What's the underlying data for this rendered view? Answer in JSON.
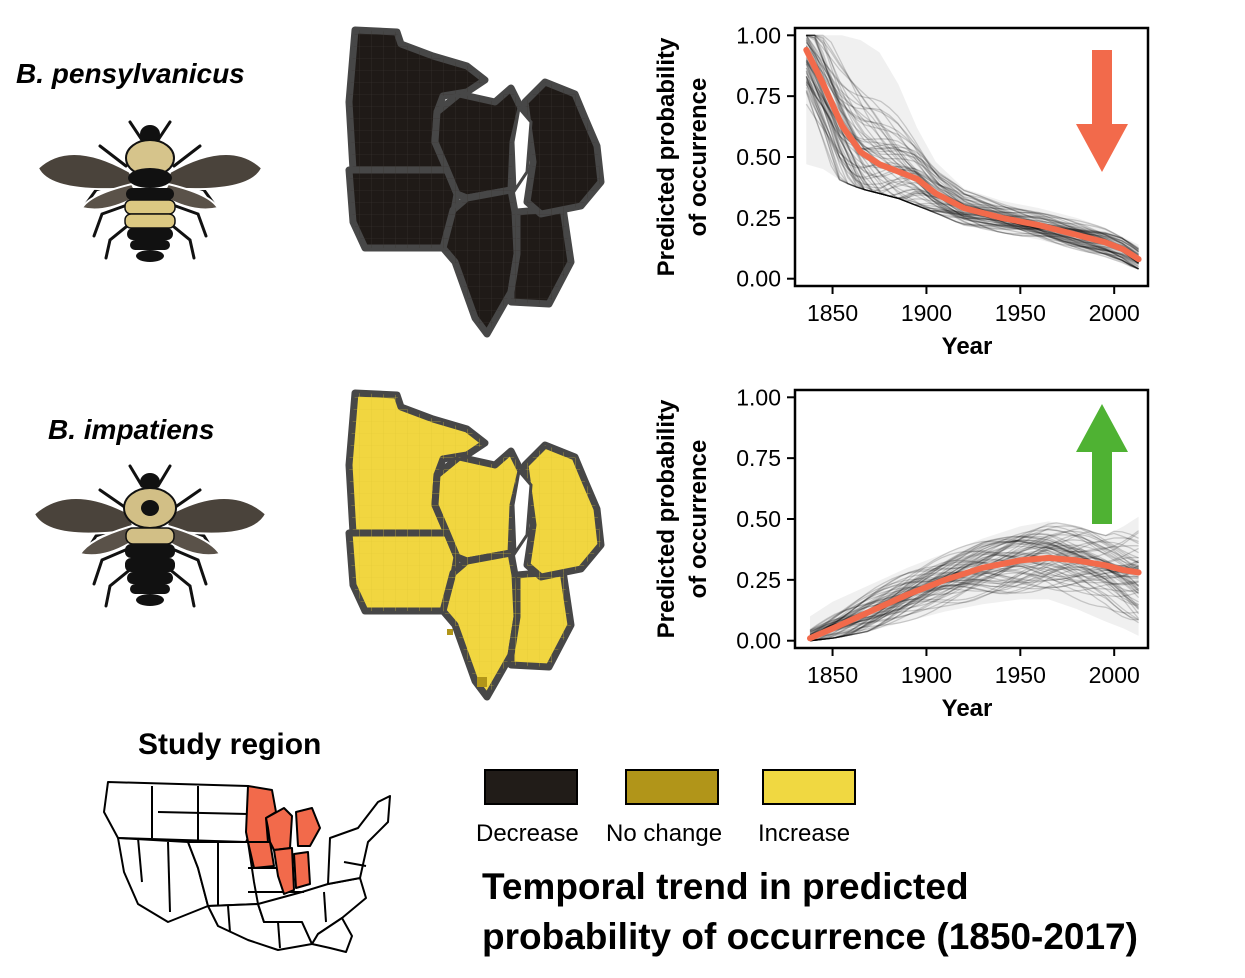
{
  "species": [
    {
      "label": "B. pensylvanicus",
      "map_color": "#1f1a17",
      "arrow": "down"
    },
    {
      "label": "B. impatiens",
      "map_color": "#f1d640",
      "arrow": "up"
    }
  ],
  "colors": {
    "decrease": "#211c18",
    "no_change": "#b19519",
    "increase": "#f0d841",
    "trend_line": "#f26a4b",
    "arrow_down": "#f26a4b",
    "arrow_up": "#4fb233",
    "study_region_highlight": "#f26a4b",
    "map_border": "#3f3f3f"
  },
  "legend": {
    "items": [
      {
        "label": "Decrease",
        "color": "#211c18"
      },
      {
        "label": "No change",
        "color": "#b19519"
      },
      {
        "label": "Increase",
        "color": "#f0d841"
      }
    ]
  },
  "study_region": {
    "title": "Study region"
  },
  "footer_title": {
    "line1": "Temporal trend in predicted",
    "line2": "probability of occurrence (1850-2017)"
  },
  "chart_data": [
    {
      "type": "line",
      "title": "",
      "xlabel": "Year",
      "ylabel": "Predicted probability of occurrence",
      "ylabel_lines": [
        "Predicted probability",
        "of occurrence"
      ],
      "xlim": [
        1830,
        2018
      ],
      "ylim": [
        -0.03,
        1.03
      ],
      "x_ticks": [
        1850,
        1900,
        1950,
        2000
      ],
      "y_ticks": [
        0.0,
        0.25,
        0.5,
        0.75,
        1.0
      ],
      "y_tick_labels": [
        "0.00",
        "0.25",
        "0.50",
        "0.75",
        "1.00"
      ],
      "grid": false,
      "series": [
        {
          "role": "mean",
          "color": "#f26a4b",
          "x": [
            1836,
            1845,
            1855,
            1865,
            1875,
            1885,
            1895,
            1905,
            1920,
            1940,
            1960,
            1980,
            1995,
            2005,
            2013
          ],
          "y": [
            0.94,
            0.8,
            0.63,
            0.52,
            0.47,
            0.44,
            0.41,
            0.35,
            0.29,
            0.25,
            0.22,
            0.18,
            0.15,
            0.12,
            0.08
          ]
        },
        {
          "role": "posterior draws",
          "color": "#000000",
          "opacity": 0.08,
          "x": [
            1836,
            1845,
            1855,
            1865,
            1875,
            1885,
            1895,
            1905,
            1920,
            1940,
            1960,
            1980,
            1995,
            2005,
            2013
          ],
          "y_band": [
            [
              0.47,
              1.0
            ],
            [
              0.45,
              1.0
            ],
            [
              0.4,
              1.0
            ],
            [
              0.37,
              0.98
            ],
            [
              0.35,
              0.93
            ],
            [
              0.33,
              0.8
            ],
            [
              0.3,
              0.62
            ],
            [
              0.27,
              0.48
            ],
            [
              0.22,
              0.37
            ],
            [
              0.19,
              0.32
            ],
            [
              0.16,
              0.29
            ],
            [
              0.12,
              0.25
            ],
            [
              0.09,
              0.21
            ],
            [
              0.06,
              0.17
            ],
            [
              0.04,
              0.14
            ]
          ]
        }
      ]
    },
    {
      "type": "line",
      "title": "",
      "xlabel": "Year",
      "ylabel": "Predicted probability of occurrence",
      "ylabel_lines": [
        "Predicted probability",
        "of occurrence"
      ],
      "xlim": [
        1830,
        2018
      ],
      "ylim": [
        -0.03,
        1.03
      ],
      "x_ticks": [
        1850,
        1900,
        1950,
        2000
      ],
      "y_ticks": [
        0.0,
        0.25,
        0.5,
        0.75,
        1.0
      ],
      "y_tick_labels": [
        "0.00",
        "0.25",
        "0.50",
        "0.75",
        "1.00"
      ],
      "grid": false,
      "series": [
        {
          "role": "mean",
          "color": "#f26a4b",
          "x": [
            1838,
            1850,
            1870,
            1890,
            1910,
            1930,
            1950,
            1965,
            1980,
            1995,
            2005,
            2013
          ],
          "y": [
            0.01,
            0.05,
            0.12,
            0.19,
            0.25,
            0.3,
            0.33,
            0.34,
            0.33,
            0.31,
            0.29,
            0.28
          ]
        },
        {
          "role": "posterior draws",
          "color": "#000000",
          "opacity": 0.08,
          "x": [
            1838,
            1850,
            1870,
            1890,
            1910,
            1930,
            1950,
            1965,
            1980,
            1995,
            2005,
            2013
          ],
          "y_band": [
            [
              0.0,
              0.1
            ],
            [
              0.01,
              0.16
            ],
            [
              0.04,
              0.23
            ],
            [
              0.08,
              0.3
            ],
            [
              0.12,
              0.36
            ],
            [
              0.15,
              0.42
            ],
            [
              0.17,
              0.47
            ],
            [
              0.17,
              0.49
            ],
            [
              0.13,
              0.47
            ],
            [
              0.08,
              0.43
            ],
            [
              0.05,
              0.47
            ],
            [
              0.02,
              0.51
            ]
          ]
        }
      ]
    }
  ]
}
